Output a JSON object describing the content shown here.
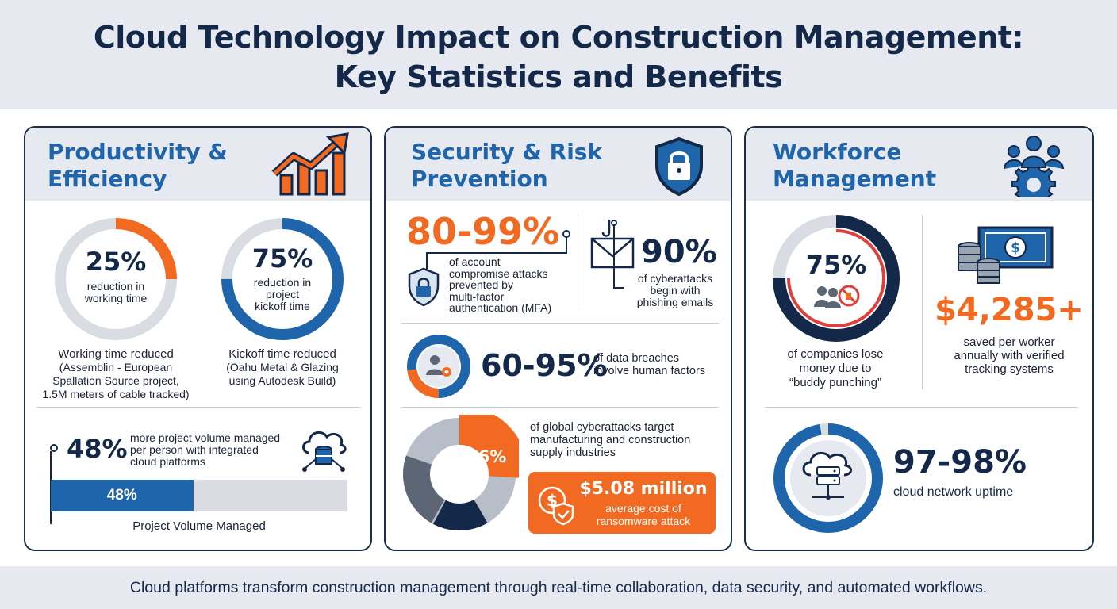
{
  "title_line1": "Cloud Technology Impact on Construction Management:",
  "title_line2": "Key Statistics and Benefits",
  "colors": {
    "navy": "#14284a",
    "blue": "#1f65ab",
    "orange": "#f26a21",
    "gray": "#d9dde3",
    "red": "#e0403a"
  },
  "productivity": {
    "title_line1": "Productivity &",
    "title_line2": "Efficiency",
    "icon": "trending-up-chart-icon",
    "ring1": {
      "value": "25%",
      "percent": 25,
      "line1": "reduction in",
      "line2": "working time",
      "cap1": "Working time reduced",
      "cap2": "(Assemblin - European",
      "cap3": "Spallation Source project,",
      "cap4": "1.5M meters of cable tracked)"
    },
    "ring2": {
      "value": "75%",
      "percent": 75,
      "line1": "reduction in",
      "line2": "project",
      "line3": "kickoff time",
      "cap1": "Kickoff time reduced",
      "cap2": "(Oahu Metal & Glazing",
      "cap3": "using Autodesk Build)"
    },
    "volume": {
      "value": "48%",
      "line1": "more project volume managed",
      "line2": "per person with integrated",
      "line3": "cloud platforms",
      "bar_label": "48%",
      "bar_percent": 48,
      "bar_caption": "Project Volume Managed",
      "icon": "cloud-database-icon"
    }
  },
  "security": {
    "title_line1": "Security & Risk",
    "title_line2": "Prevention",
    "icon": "shield-lock-icon",
    "mfa": {
      "value": "80-99%",
      "line1": "of account",
      "line2": "compromise attacks",
      "line3": "prevented by",
      "line4": "multi-factor",
      "line5": "authentication (MFA)",
      "icon": "shield-lock-icon"
    },
    "phishing": {
      "value": "90%",
      "line1": "of cyberattacks",
      "line2": "begin with",
      "line3": "phishing emails",
      "icon": "phishing-email-icon"
    },
    "breaches": {
      "value": "60-95%",
      "line1": "of data breaches",
      "line2": "involve human factors",
      "percent": 77
    },
    "global": {
      "value": "26%",
      "percent": 26,
      "line1": "of global cyberattacks target",
      "line2": "manufacturing and construction",
      "line3": "supply industries"
    },
    "ransom": {
      "value": "$5.08 million",
      "line1": "average cost of",
      "line2": "ransomware attack",
      "icon": "money-shield-icon"
    }
  },
  "workforce": {
    "title_line1": "Workforce",
    "title_line2": "Management",
    "icon": "team-gear-icon",
    "buddy": {
      "value": "75%",
      "percent": 75,
      "line1": "of companies lose",
      "line2": "money due to",
      "line3": "“buddy punching”"
    },
    "savings": {
      "value": "$4,285+",
      "line1": "saved per worker",
      "line2": "annually with verified",
      "line3": "tracking systems",
      "icon": "cash-coins-icon"
    },
    "uptime": {
      "value": "97-98%",
      "label": "cloud network uptime",
      "percent": 97.5,
      "icon": "cloud-server-icon"
    }
  },
  "footer": "Cloud platforms transform construction management through real-time collaboration, data security, and automated workflows."
}
